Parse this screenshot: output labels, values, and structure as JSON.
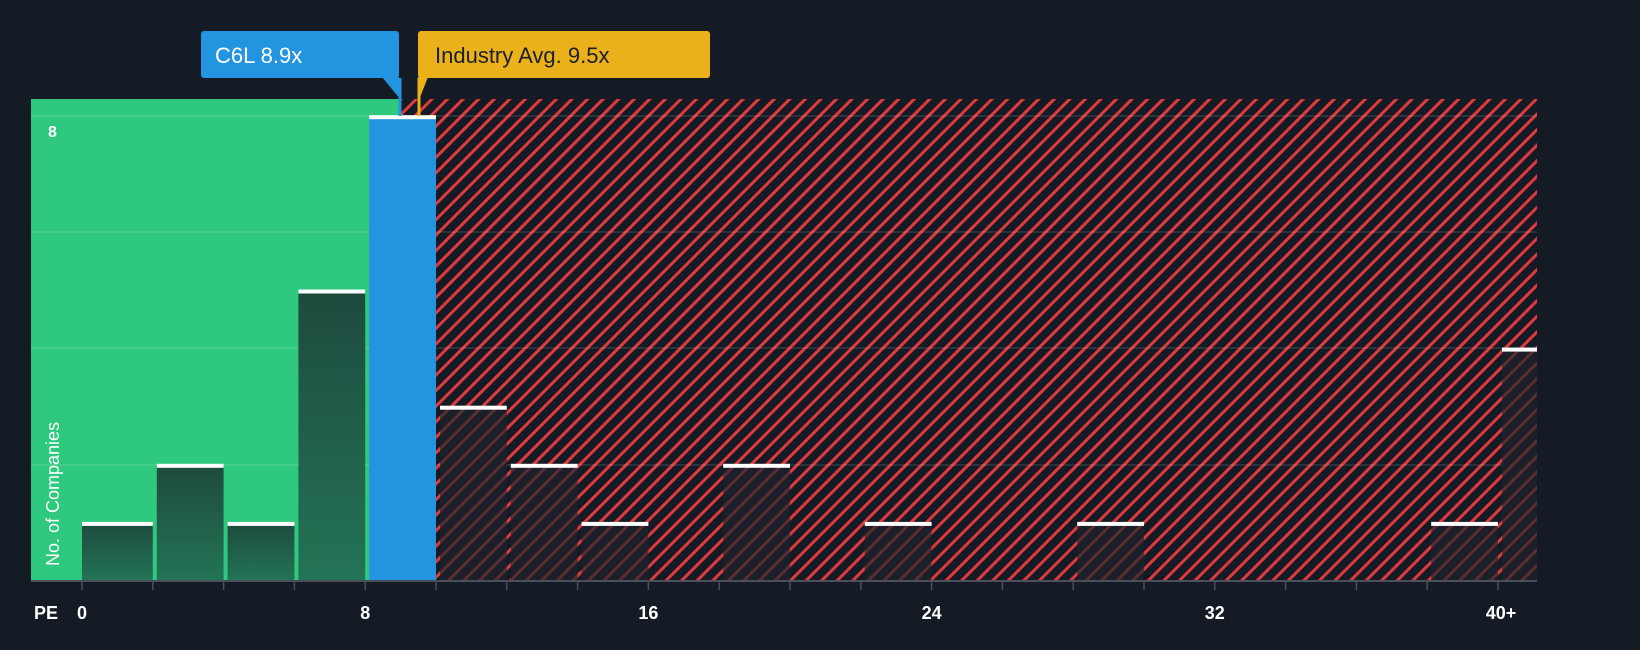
{
  "chart_data": {
    "type": "bar",
    "title": "",
    "xlabel": "PE",
    "ylabel": "No. of Companies",
    "x_ticks": [
      "0",
      "8",
      "16",
      "24",
      "32",
      "40+"
    ],
    "y_ticks": [
      "8"
    ],
    "ylim": [
      0,
      8
    ],
    "grid": true,
    "bin_width": 2,
    "bins": [
      {
        "from": 0,
        "to": 2,
        "count": 1
      },
      {
        "from": 2,
        "to": 4,
        "count": 2
      },
      {
        "from": 4,
        "to": 6,
        "count": 1
      },
      {
        "from": 6,
        "to": 8,
        "count": 5
      },
      {
        "from": 8,
        "to": 10,
        "count": 8,
        "highlight": true
      },
      {
        "from": 10,
        "to": 12,
        "count": 3
      },
      {
        "from": 12,
        "to": 14,
        "count": 2
      },
      {
        "from": 14,
        "to": 16,
        "count": 1
      },
      {
        "from": 16,
        "to": 18,
        "count": 0
      },
      {
        "from": 18,
        "to": 20,
        "count": 2
      },
      {
        "from": 20,
        "to": 22,
        "count": 0
      },
      {
        "from": 22,
        "to": 24,
        "count": 1
      },
      {
        "from": 24,
        "to": 26,
        "count": 0
      },
      {
        "from": 26,
        "to": 28,
        "count": 0
      },
      {
        "from": 28,
        "to": 30,
        "count": 1
      },
      {
        "from": 30,
        "to": 32,
        "count": 0
      },
      {
        "from": 32,
        "to": 34,
        "count": 0
      },
      {
        "from": 34,
        "to": 36,
        "count": 0
      },
      {
        "from": 36,
        "to": 38,
        "count": 0
      },
      {
        "from": 38,
        "to": 40,
        "count": 1
      },
      {
        "from": 40,
        "to": null,
        "count": 4,
        "label": "40+"
      }
    ],
    "markers": [
      {
        "name": "C6L",
        "label": "C6L 8.9x",
        "value": 8.9,
        "color": "#2394e0"
      },
      {
        "name": "Industry Avg.",
        "label": "Industry Avg. 9.5x",
        "value": 9.5,
        "color": "#ebb11a"
      }
    ],
    "regions": [
      {
        "name": "undervalued",
        "from": 0,
        "to": 8.9,
        "color": "#2ec97f"
      },
      {
        "name": "overvalued",
        "from": 9.5,
        "to": 40,
        "color": "#e0393e",
        "pattern": "hatched"
      }
    ]
  },
  "labels": {
    "company": "C6L 8.9x",
    "industry": "Industry Avg. 9.5x",
    "x_axis": "PE",
    "y_axis": "No. of Companies",
    "y_tick_top": "8"
  },
  "colors": {
    "background": "#151b24",
    "green": "#2ec97f",
    "blue": "#2394e0",
    "gold": "#ebb11a",
    "red": "#e0393e",
    "bar_green": "#1f5b45",
    "bar_dark": "#1b1f29"
  }
}
